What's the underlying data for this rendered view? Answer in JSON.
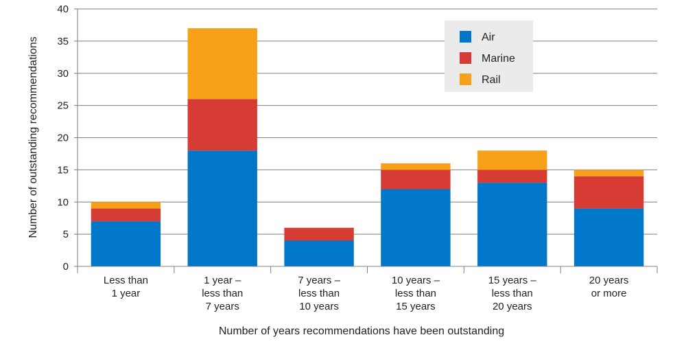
{
  "chart_data": {
    "type": "bar",
    "stacked": true,
    "categories": [
      [
        "Less than",
        "1 year"
      ],
      [
        "1 year –",
        "less than",
        "7 years"
      ],
      [
        "7 years –",
        "less than",
        "10 years"
      ],
      [
        "10 years –",
        "less than",
        "15 years"
      ],
      [
        "15 years –",
        "less than",
        "20 years"
      ],
      [
        "20 years",
        "or more"
      ]
    ],
    "series": [
      {
        "name": "Air",
        "color": "#0077c8",
        "values": [
          7,
          18,
          4,
          12,
          13,
          9
        ]
      },
      {
        "name": "Marine",
        "color": "#d63b34",
        "values": [
          2,
          8,
          2,
          3,
          2,
          5
        ]
      },
      {
        "name": "Rail",
        "color": "#f7a11a",
        "values": [
          1,
          11,
          0,
          1,
          3,
          1
        ]
      }
    ],
    "xlabel": "Number of years recommendations have been outstanding",
    "ylabel": "Number of outstanding recommendations",
    "ylim": [
      0,
      40
    ],
    "yticks": [
      0,
      5,
      10,
      15,
      20,
      25,
      30,
      35,
      40
    ],
    "grid": true,
    "legend_position": "top-right"
  }
}
